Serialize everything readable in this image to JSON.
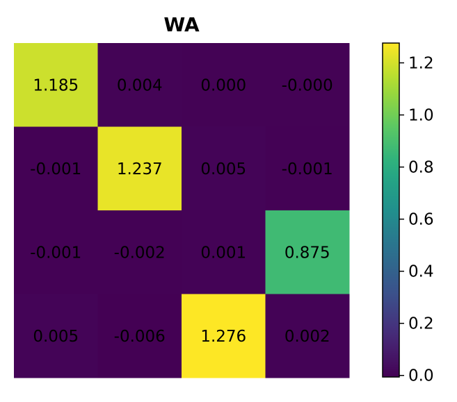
{
  "chart_data": {
    "type": "heatmap",
    "title": "WA",
    "colormap": "viridis",
    "rows": 4,
    "cols": 4,
    "values": [
      [
        1.185,
        0.004,
        0.0,
        -0.0
      ],
      [
        -0.001,
        1.237,
        0.005,
        -0.001
      ],
      [
        -0.001,
        -0.002,
        0.001,
        0.875
      ],
      [
        0.005,
        -0.006,
        1.276,
        0.002
      ]
    ],
    "labels": [
      [
        "1.185",
        "0.004",
        "0.000",
        "-0.000"
      ],
      [
        "-0.001",
        "1.237",
        "0.005",
        "-0.001"
      ],
      [
        "-0.001",
        "-0.002",
        "0.001",
        "0.875"
      ],
      [
        "0.005",
        "-0.006",
        "1.276",
        "0.002"
      ]
    ],
    "vmin": -0.006,
    "vmax": 1.276,
    "colorbar": {
      "ticks": [
        0.0,
        0.2,
        0.4,
        0.6,
        0.8,
        1.0,
        1.2
      ],
      "tick_labels": [
        "0.0",
        "0.2",
        "0.4",
        "0.6",
        "0.8",
        "1.0",
        "1.2"
      ]
    },
    "axes_visible": false
  }
}
